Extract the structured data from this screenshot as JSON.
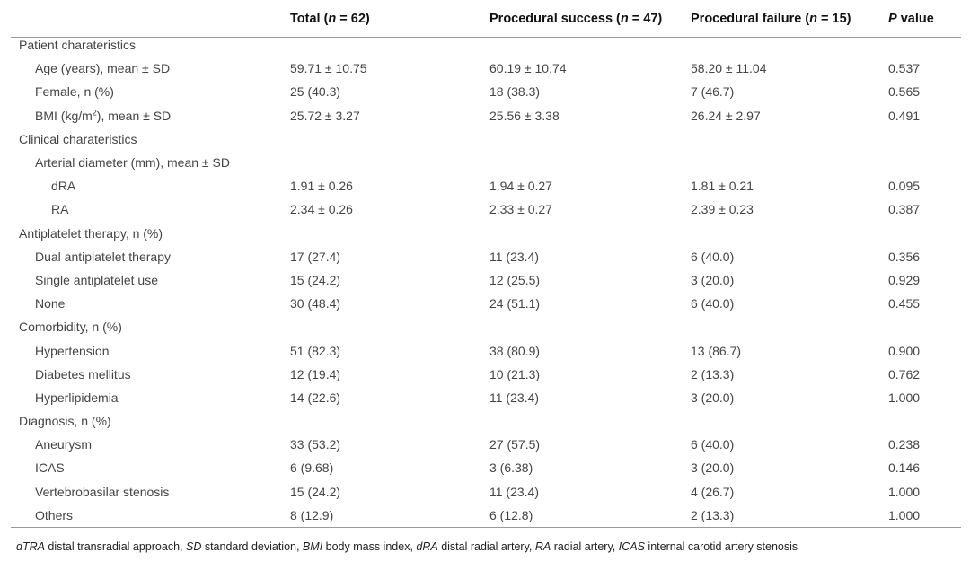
{
  "header": {
    "col0": "",
    "col1": "Total (n = 62)",
    "col2": "Procedural success (n = 47)",
    "col3": "Procedural failure (n = 15)",
    "col4": "P value"
  },
  "rows": [
    {
      "label": "Patient charateristics",
      "level": 0,
      "vals": [
        "",
        "",
        "",
        ""
      ]
    },
    {
      "label": "Age (years), mean ± SD",
      "level": 1,
      "vals": [
        "59.71 ± 10.75",
        "60.19 ± 10.74",
        "58.20 ± 11.04",
        "0.537"
      ]
    },
    {
      "label": "Female, n (%)",
      "level": 1,
      "vals": [
        "25 (40.3)",
        "18 (38.3)",
        "7 (46.7)",
        "0.565"
      ]
    },
    {
      "label": "BMI (kg/m2), mean ± SD",
      "level": 1,
      "vals": [
        "25.72 ± 3.27",
        "25.56 ± 3.38",
        "26.24 ± 2.97",
        "0.491"
      ]
    },
    {
      "label": "Clinical charateristics",
      "level": 0,
      "vals": [
        "",
        "",
        "",
        ""
      ]
    },
    {
      "label": "Arterial diameter (mm), mean ± SD",
      "level": 1,
      "vals": [
        "",
        "",
        "",
        ""
      ]
    },
    {
      "label": "dRA",
      "level": 2,
      "vals": [
        "1.91 ± 0.26",
        "1.94 ± 0.27",
        "1.81 ± 0.21",
        "0.095"
      ]
    },
    {
      "label": "RA",
      "level": 2,
      "vals": [
        "2.34 ± 0.26",
        "2.33 ± 0.27",
        "2.39 ± 0.23",
        "0.387"
      ]
    },
    {
      "label": "Antiplatelet therapy, n (%)",
      "level": 0,
      "vals": [
        "",
        "",
        "",
        ""
      ]
    },
    {
      "label": "Dual antiplatelet therapy",
      "level": 1,
      "vals": [
        "17 (27.4)",
        "11 (23.4)",
        "6 (40.0)",
        "0.356"
      ]
    },
    {
      "label": "Single antiplatelet use",
      "level": 1,
      "vals": [
        "15 (24.2)",
        "12 (25.5)",
        "3 (20.0)",
        "0.929"
      ]
    },
    {
      "label": "None",
      "level": 1,
      "vals": [
        "30 (48.4)",
        "24 (51.1)",
        "6 (40.0)",
        "0.455"
      ]
    },
    {
      "label": "Comorbidity, n (%)",
      "level": 0,
      "vals": [
        "",
        "",
        "",
        ""
      ]
    },
    {
      "label": "Hypertension",
      "level": 1,
      "vals": [
        "51 (82.3)",
        "38 (80.9)",
        "13 (86.7)",
        "0.900"
      ]
    },
    {
      "label": "Diabetes mellitus",
      "level": 1,
      "vals": [
        "12 (19.4)",
        "10 (21.3)",
        "2 (13.3)",
        "0.762"
      ]
    },
    {
      "label": "Hyperlipidemia",
      "level": 1,
      "vals": [
        "14 (22.6)",
        "11 (23.4)",
        "3 (20.0)",
        "1.000"
      ]
    },
    {
      "label": "Diagnosis, n (%)",
      "level": 0,
      "vals": [
        "",
        "",
        "",
        ""
      ]
    },
    {
      "label": "Aneurysm",
      "level": 1,
      "vals": [
        "33 (53.2)",
        "27 (57.5)",
        "6 (40.0)",
        "0.238"
      ]
    },
    {
      "label": "ICAS",
      "level": 1,
      "vals": [
        "6 (9.68)",
        "3 (6.38)",
        "3 (20.0)",
        "0.146"
      ]
    },
    {
      "label": "Vertebrobasilar stenosis",
      "level": 1,
      "vals": [
        "15 (24.2)",
        "11 (23.4)",
        "4 (26.7)",
        "1.000"
      ]
    },
    {
      "label": "Others",
      "level": 1,
      "vals": [
        "8 (12.9)",
        "6 (12.8)",
        "2 (13.3)",
        "1.000"
      ]
    }
  ],
  "footnote": "dTRA distal transradial approach, SD standard deviation, BMI body mass index, dRA distal radial artery, RA radial artery, ICAS internal carotid artery stenosis"
}
